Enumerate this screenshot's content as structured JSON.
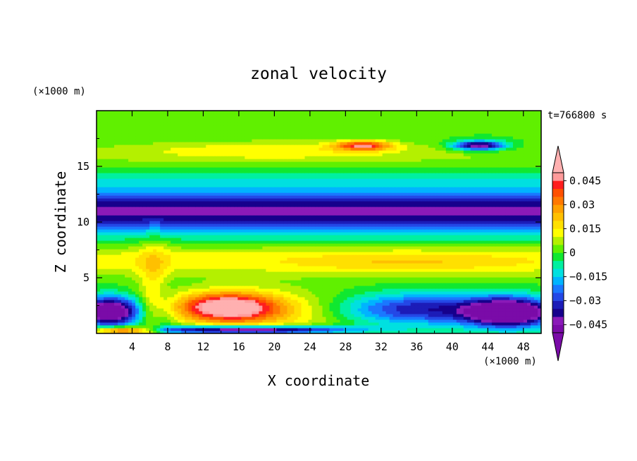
{
  "chart_data": {
    "type": "heatmap",
    "title": "zonal velocity",
    "xlabel": "X coordinate",
    "ylabel": "Z coordinate",
    "x_unit": "(×1000 m)",
    "y_unit": "(×1000 m)",
    "time_label": "t=766800 s",
    "xlim": [
      0,
      50
    ],
    "ylim": [
      0,
      20
    ],
    "x_ticks": [
      4,
      8,
      12,
      16,
      20,
      24,
      28,
      32,
      36,
      40,
      44,
      48
    ],
    "x_tick_labels": [
      "4",
      "8",
      "12",
      "16",
      "20",
      "24",
      "28",
      "32",
      "36",
      "40",
      "44",
      "48"
    ],
    "y_ticks": [
      5,
      10,
      15
    ],
    "y_tick_labels": [
      "5",
      "10",
      "15"
    ],
    "colorbar": {
      "levels": [
        -0.05,
        -0.045,
        -0.04,
        -0.035,
        -0.03,
        -0.025,
        -0.02,
        -0.015,
        -0.01,
        -0.005,
        0,
        0.005,
        0.01,
        0.015,
        0.02,
        0.025,
        0.03,
        0.035,
        0.04,
        0.045,
        0.05
      ],
      "labels": [
        "0.045",
        "0.03",
        "0.015",
        "0",
        "−0.015",
        "−0.03",
        "−0.045"
      ],
      "label_values": [
        0.045,
        0.03,
        0.015,
        0,
        -0.015,
        -0.03,
        -0.045
      ],
      "colors": [
        "#7a0ba8",
        "#8a1ab8",
        "#16008c",
        "#1c1cb8",
        "#2448e6",
        "#1a78ff",
        "#00b4ff",
        "#00e0e0",
        "#00f0a0",
        "#10e830",
        "#60f000",
        "#b4f000",
        "#ffff00",
        "#ffe000",
        "#ffc000",
        "#ffa000",
        "#ff7800",
        "#ff5000",
        "#ff1e1e",
        "#ff9a9a"
      ],
      "extend_min_color": "#7a0ba8",
      "extend_max_color": "#ffb0b0"
    },
    "features": [
      {
        "name": "upper jet core",
        "x_range": [
          0,
          50
        ],
        "z_center": 11.0,
        "approx_value": -0.04
      },
      {
        "name": "mid-level positive band",
        "x_range": [
          0,
          50
        ],
        "z_center": 6.5,
        "approx_value": 0.02
      },
      {
        "name": "positive maximum near surface",
        "x": 14.5,
        "z": 2.5,
        "approx_value": 0.05
      },
      {
        "name": "positive maximum aloft",
        "x": 30,
        "z": 16.8,
        "approx_value": 0.04
      },
      {
        "name": "negative maximum aloft",
        "x": 43,
        "z": 16.8,
        "approx_value": -0.045
      },
      {
        "name": "low-level negative core west",
        "x": 2,
        "z": 2,
        "approx_value": -0.05
      },
      {
        "name": "low-level negative core east",
        "x": 46,
        "z": 2,
        "approx_value": -0.05
      }
    ]
  }
}
